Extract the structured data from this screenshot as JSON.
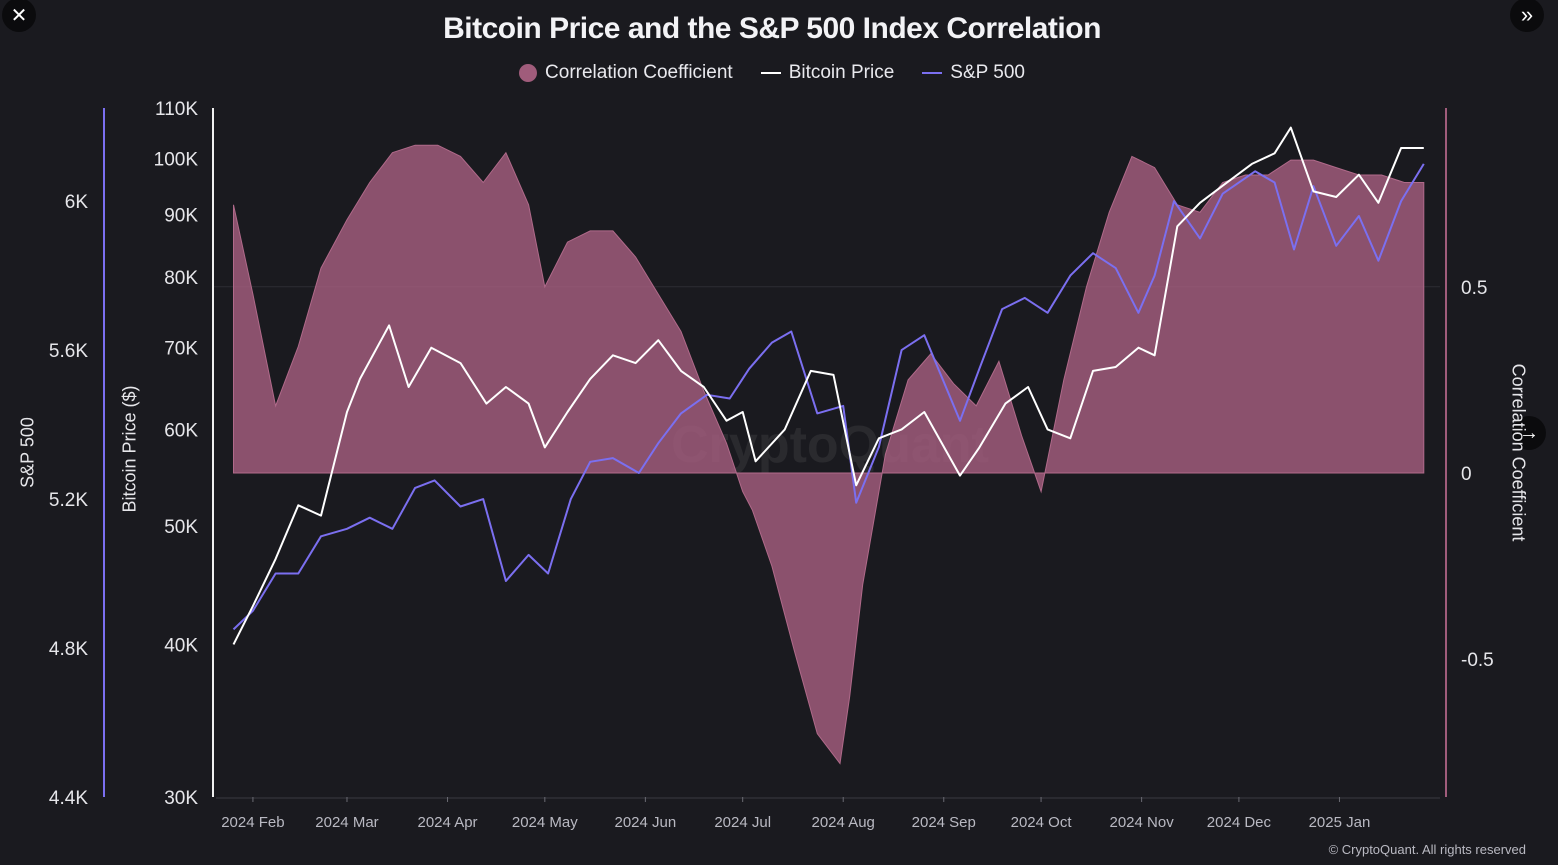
{
  "viewer": {
    "close_icon": "close-icon",
    "expand_icon": "double-chevron-right-icon",
    "next_icon": "arrow-right-icon"
  },
  "footer": {
    "copyright": "© CryptoQuant. All rights reserved"
  },
  "colors": {
    "background": "#1a1a1f",
    "correlation": "#a05c7b",
    "bitcoin": "#ffffff",
    "sp500": "#7b6ff0"
  },
  "chart_data": {
    "type": "line",
    "title": "Bitcoin Price and the S&P 500 Index Correlation",
    "legend": [
      "Correlation Coefficient",
      "Bitcoin Price",
      "S&P 500"
    ],
    "legend_position": "top-center",
    "watermark": "CryptoQuant",
    "x_tick_labels": [
      "2024 Feb",
      "2024 Mar",
      "2024 Apr",
      "2024 May",
      "2024 Jun",
      "2024 Jul",
      "2024 Aug",
      "2024 Sep",
      "2024 Oct",
      "2024 Nov",
      "2024 Dec",
      "2025 Jan"
    ],
    "axes": {
      "sp500": {
        "label": "S&P 500",
        "ticks": [
          "6K",
          "5.6K",
          "5.2K",
          "4.8K",
          "4.4K"
        ],
        "tick_values": [
          6000,
          5600,
          5200,
          4800,
          4400
        ],
        "range": [
          4400,
          6250
        ]
      },
      "bitcoin": {
        "label": "Bitcoin Price ($)",
        "scale": "log",
        "ticks": [
          "110K",
          "100K",
          "90K",
          "80K",
          "70K",
          "60K",
          "50K",
          "40K",
          "30K"
        ],
        "tick_values": [
          110000,
          100000,
          90000,
          80000,
          70000,
          60000,
          50000,
          40000,
          30000
        ],
        "range": [
          30000,
          110000
        ]
      },
      "correlation": {
        "label": "Correlation Coefficient",
        "ticks": [
          "0.5",
          "0",
          "-0.5"
        ],
        "tick_values": [
          0.5,
          0,
          -0.5
        ],
        "range": [
          -0.87,
          0.98
        ]
      }
    },
    "grid": "horizontal line at correlation 0.5",
    "series": [
      {
        "name": "Correlation Coefficient",
        "kind": "area",
        "x": [
          "2024-01-26",
          "2024-02-01",
          "2024-02-08",
          "2024-02-15",
          "2024-02-22",
          "2024-03-01",
          "2024-03-08",
          "2024-03-15",
          "2024-03-22",
          "2024-03-29",
          "2024-04-05",
          "2024-04-12",
          "2024-04-19",
          "2024-04-26",
          "2024-05-01",
          "2024-05-08",
          "2024-05-15",
          "2024-05-22",
          "2024-05-29",
          "2024-06-05",
          "2024-06-12",
          "2024-06-19",
          "2024-06-26",
          "2024-07-01",
          "2024-07-04",
          "2024-07-10",
          "2024-07-17",
          "2024-07-24",
          "2024-07-31",
          "2024-08-03",
          "2024-08-07",
          "2024-08-14",
          "2024-08-21",
          "2024-08-28",
          "2024-09-04",
          "2024-09-11",
          "2024-09-18",
          "2024-09-25",
          "2024-10-01",
          "2024-10-08",
          "2024-10-15",
          "2024-10-22",
          "2024-10-29",
          "2024-11-05",
          "2024-11-12",
          "2024-11-19",
          "2024-11-26",
          "2024-12-03",
          "2024-12-10",
          "2024-12-17",
          "2024-12-24",
          "2024-12-31",
          "2025-01-07",
          "2025-01-14",
          "2025-01-21",
          "2025-01-27"
        ],
        "values": [
          0.72,
          0.48,
          0.18,
          0.34,
          0.55,
          0.68,
          0.78,
          0.86,
          0.88,
          0.88,
          0.85,
          0.78,
          0.86,
          0.72,
          0.5,
          0.62,
          0.65,
          0.65,
          0.58,
          0.48,
          0.38,
          0.22,
          0.08,
          -0.05,
          -0.1,
          -0.25,
          -0.48,
          -0.7,
          -0.78,
          -0.6,
          -0.3,
          0.05,
          0.25,
          0.32,
          0.24,
          0.18,
          0.3,
          0.1,
          -0.05,
          0.25,
          0.5,
          0.7,
          0.85,
          0.82,
          0.72,
          0.7,
          0.78,
          0.8,
          0.8,
          0.84,
          0.84,
          0.82,
          0.8,
          0.8,
          0.78,
          0.78
        ]
      },
      {
        "name": "Bitcoin Price",
        "kind": "line",
        "x": [
          "2024-01-26",
          "2024-02-01",
          "2024-02-08",
          "2024-02-15",
          "2024-02-22",
          "2024-03-01",
          "2024-03-05",
          "2024-03-14",
          "2024-03-20",
          "2024-03-27",
          "2024-04-05",
          "2024-04-13",
          "2024-04-19",
          "2024-04-26",
          "2024-05-01",
          "2024-05-08",
          "2024-05-15",
          "2024-05-22",
          "2024-05-29",
          "2024-06-05",
          "2024-06-12",
          "2024-06-19",
          "2024-06-26",
          "2024-07-01",
          "2024-07-05",
          "2024-07-14",
          "2024-07-22",
          "2024-07-29",
          "2024-08-05",
          "2024-08-12",
          "2024-08-19",
          "2024-08-26",
          "2024-09-06",
          "2024-09-12",
          "2024-09-20",
          "2024-09-27",
          "2024-10-03",
          "2024-10-10",
          "2024-10-17",
          "2024-10-24",
          "2024-10-31",
          "2024-11-05",
          "2024-11-12",
          "2024-11-19",
          "2024-11-26",
          "2024-12-05",
          "2024-12-12",
          "2024-12-17",
          "2024-12-24",
          "2024-12-31",
          "2025-01-07",
          "2025-01-13",
          "2025-01-20",
          "2025-01-27"
        ],
        "values": [
          40000,
          43000,
          47000,
          52000,
          51000,
          62000,
          66000,
          73000,
          65000,
          70000,
          68000,
          63000,
          65000,
          63000,
          58000,
          62000,
          66000,
          69000,
          68000,
          71000,
          67000,
          65000,
          61000,
          62000,
          56500,
          60000,
          67000,
          66500,
          54000,
          59000,
          60000,
          62000,
          55000,
          58000,
          63000,
          65000,
          60000,
          59000,
          67000,
          67500,
          70000,
          69000,
          88000,
          92000,
          95000,
          99000,
          101000,
          106000,
          94000,
          93000,
          97000,
          92000,
          102000,
          102000
        ]
      },
      {
        "name": "S&P 500",
        "kind": "line",
        "x": [
          "2024-01-26",
          "2024-02-01",
          "2024-02-08",
          "2024-02-15",
          "2024-02-22",
          "2024-03-01",
          "2024-03-08",
          "2024-03-15",
          "2024-03-22",
          "2024-03-28",
          "2024-04-05",
          "2024-04-12",
          "2024-04-19",
          "2024-04-26",
          "2024-05-02",
          "2024-05-09",
          "2024-05-15",
          "2024-05-22",
          "2024-05-30",
          "2024-06-05",
          "2024-06-12",
          "2024-06-20",
          "2024-06-27",
          "2024-07-03",
          "2024-07-10",
          "2024-07-16",
          "2024-07-24",
          "2024-08-01",
          "2024-08-05",
          "2024-08-12",
          "2024-08-19",
          "2024-08-26",
          "2024-09-06",
          "2024-09-12",
          "2024-09-19",
          "2024-09-26",
          "2024-10-03",
          "2024-10-10",
          "2024-10-17",
          "2024-10-24",
          "2024-10-31",
          "2024-11-05",
          "2024-11-11",
          "2024-11-19",
          "2024-11-26",
          "2024-12-06",
          "2024-12-12",
          "2024-12-18",
          "2024-12-24",
          "2024-12-31",
          "2025-01-07",
          "2025-01-13",
          "2025-01-20",
          "2025-01-27"
        ],
        "values": [
          4850,
          4900,
          5000,
          5000,
          5100,
          5120,
          5150,
          5120,
          5230,
          5250,
          5180,
          5200,
          4980,
          5050,
          5000,
          5200,
          5300,
          5310,
          5270,
          5350,
          5430,
          5480,
          5470,
          5550,
          5620,
          5650,
          5430,
          5450,
          5190,
          5340,
          5600,
          5640,
          5410,
          5550,
          5710,
          5740,
          5700,
          5800,
          5860,
          5820,
          5700,
          5800,
          6000,
          5900,
          6020,
          6080,
          6050,
          5870,
          6040,
          5880,
          5960,
          5840,
          6000,
          6100
        ]
      }
    ]
  }
}
